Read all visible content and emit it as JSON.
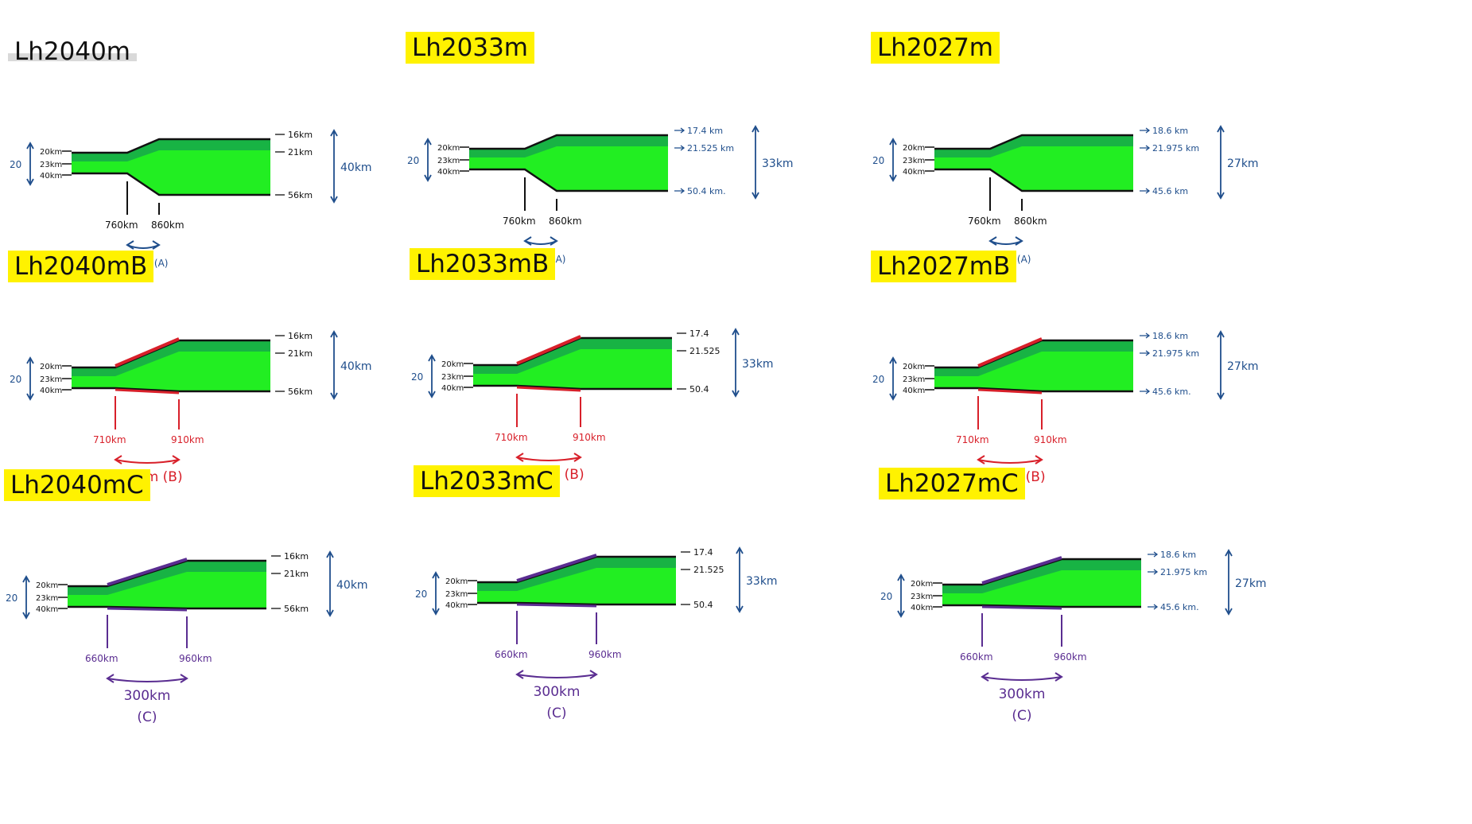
{
  "colors": {
    "fill": "#22ee22",
    "band": "#16a84a",
    "outline": "#111111",
    "blue": "#1f4e8c",
    "red": "#d8202a",
    "purple": "#5a2d91",
    "yellow": "#fff200"
  },
  "panels": [
    {
      "title": "Lh2040m",
      "title_highlight": "grey",
      "vertical_extent": "20",
      "left_depths": [
        "20km",
        "23km",
        "40km"
      ],
      "right_depths": [
        "16km",
        "21km",
        "56km"
      ],
      "right_style": "tick",
      "right_total": "40km",
      "transition_start": "760km",
      "transition_end": "860km",
      "transition_span": "100km (A)",
      "accent": "blue",
      "width_class": "A"
    },
    {
      "title": "Lh2033m",
      "title_highlight": "yellow",
      "vertical_extent": "20",
      "left_depths": [
        "20km",
        "23km",
        "40km"
      ],
      "right_depths": [
        "17.4 km",
        "21.525 km",
        "50.4 km."
      ],
      "right_style": "arrow",
      "right_total": "33km",
      "transition_start": "760km",
      "transition_end": "860km",
      "transition_span": "100km (A)",
      "accent": "blue",
      "width_class": "A"
    },
    {
      "title": "Lh2027m",
      "title_highlight": "yellow",
      "vertical_extent": "20",
      "left_depths": [
        "20km",
        "23km",
        "40km"
      ],
      "right_depths": [
        "18.6 km",
        "21.975 km",
        "45.6 km"
      ],
      "right_style": "arrow",
      "right_total": "27km",
      "transition_start": "760km",
      "transition_end": "860km",
      "transition_span": "100km (A)",
      "accent": "blue",
      "width_class": "A"
    },
    {
      "title": "Lh2040mB",
      "title_highlight": "yellow",
      "vertical_extent": "20",
      "left_depths": [
        "20km",
        "23km",
        "40km"
      ],
      "right_depths": [
        "16km",
        "21km",
        "56km"
      ],
      "right_style": "tick",
      "right_total": "40km",
      "transition_start": "710km",
      "transition_end": "910km",
      "transition_span": "200km (B)",
      "accent": "red",
      "width_class": "B"
    },
    {
      "title": "Lh2033mB",
      "title_highlight": "yellow",
      "vertical_extent": "20",
      "left_depths": [
        "20km",
        "23km",
        "40km"
      ],
      "right_depths": [
        "17.4",
        "21.525",
        "50.4"
      ],
      "right_style": "tick",
      "right_total": "33km",
      "transition_start": "710km",
      "transition_end": "910km",
      "transition_span": "200km (B)",
      "accent": "red",
      "width_class": "B"
    },
    {
      "title": "Lh2027mB",
      "title_highlight": "yellow",
      "vertical_extent": "20",
      "left_depths": [
        "20km",
        "23km",
        "40km"
      ],
      "right_depths": [
        "18.6 km",
        "21.975 km",
        "45.6 km."
      ],
      "right_style": "arrow",
      "right_total": "27km",
      "transition_start": "710km",
      "transition_end": "910km",
      "transition_span": "200km (B)",
      "accent": "red",
      "width_class": "B"
    },
    {
      "title": "Lh2040mC",
      "title_highlight": "yellow",
      "vertical_extent": "20",
      "left_depths": [
        "20km",
        "23km",
        "40km"
      ],
      "right_depths": [
        "16km",
        "21km",
        "56km"
      ],
      "right_style": "tick",
      "right_total": "40km",
      "transition_start": "660km",
      "transition_end": "960km",
      "transition_span": "300km",
      "span_tag": "(C)",
      "accent": "purple",
      "width_class": "C"
    },
    {
      "title": "Lh2033mC",
      "title_highlight": "yellow",
      "vertical_extent": "20",
      "left_depths": [
        "20km",
        "23km",
        "40km"
      ],
      "right_depths": [
        "17.4",
        "21.525",
        "50.4"
      ],
      "right_style": "tick",
      "right_total": "33km",
      "transition_start": "660km",
      "transition_end": "960km",
      "transition_span": "300km",
      "span_tag": "(C)",
      "accent": "purple",
      "width_class": "C"
    },
    {
      "title": "Lh2027mC",
      "title_highlight": "yellow",
      "vertical_extent": "20",
      "left_depths": [
        "20km",
        "23km",
        "40km"
      ],
      "right_depths": [
        "18.6 km",
        "21.975 km",
        "45.6 km."
      ],
      "right_style": "arrow",
      "right_total": "27km",
      "transition_start": "660km",
      "transition_end": "960km",
      "transition_span": "300km",
      "span_tag": "(C)",
      "accent": "purple",
      "width_class": "C"
    }
  ]
}
